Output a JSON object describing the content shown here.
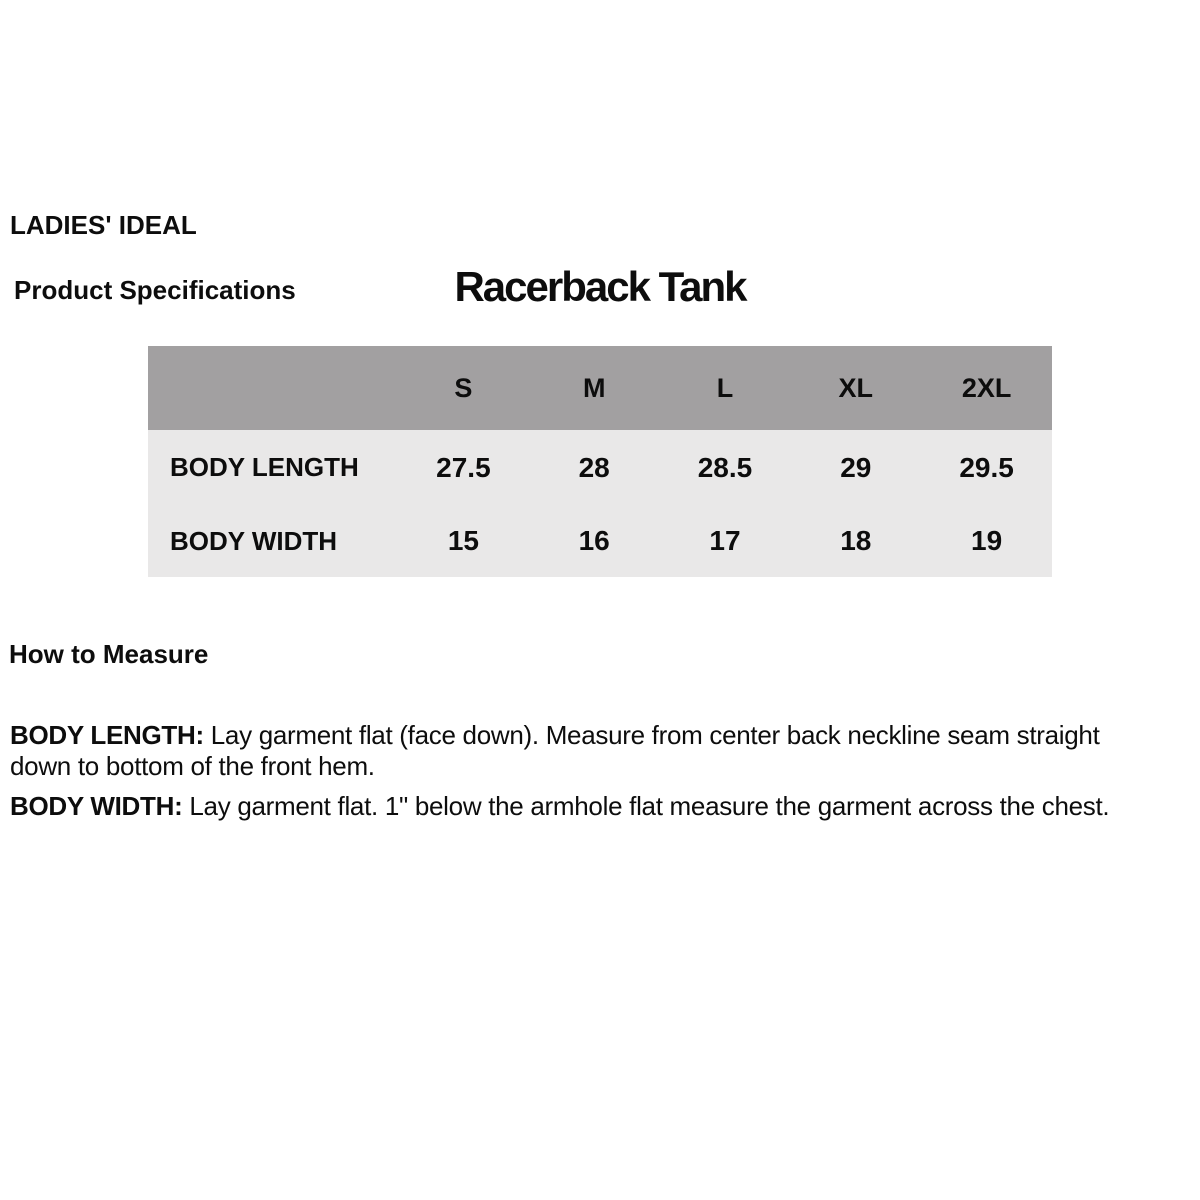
{
  "page": {
    "brand": "LADIES' IDEAL",
    "section_label": "Product Specifications",
    "product_title": "Racerback Tank",
    "background": "#ffffff",
    "text_color": "#0d0d0d"
  },
  "spec_table": {
    "header_bg": "#a2a0a1",
    "body_bg": "#e9e8e8",
    "columns": [
      "S",
      "M",
      "L",
      "XL",
      "2XL"
    ],
    "rows": [
      {
        "label": "BODY LENGTH",
        "values": [
          "27.5",
          "28",
          "28.5",
          "29",
          "29.5"
        ]
      },
      {
        "label": "BODY WIDTH",
        "values": [
          "15",
          "16",
          "17",
          "18",
          "19"
        ]
      }
    ]
  },
  "how_to_measure": {
    "heading": "How to Measure",
    "instructions": [
      {
        "label": "BODY LENGTH:",
        "text": "Lay garment flat (face down). Measure from center back neckline seam straight\ndown to bottom of the front hem."
      },
      {
        "label": "BODY WIDTH:",
        "text": "Lay garment flat. 1\" below the armhole flat measure the garment across the chest."
      }
    ]
  }
}
